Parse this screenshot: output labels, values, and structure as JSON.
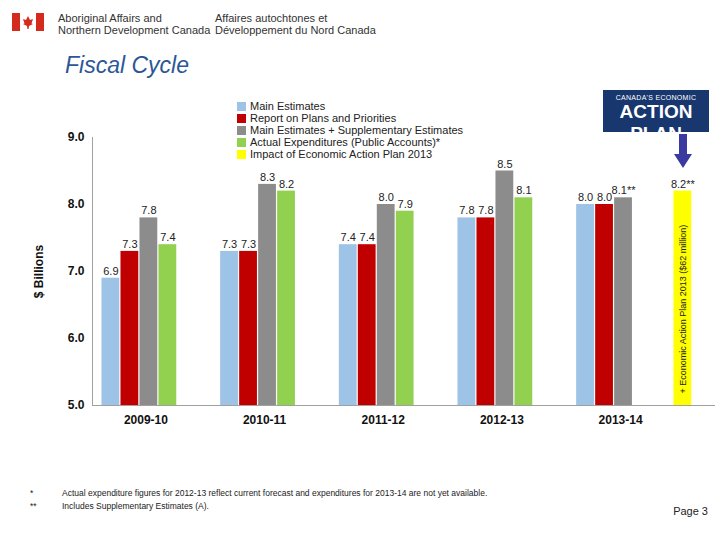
{
  "header": {
    "english": [
      "Aboriginal Affairs and",
      "Northern Development Canada"
    ],
    "french": [
      "Affaires autochtones et",
      "Développement du Nord Canada"
    ]
  },
  "title": "Fiscal Cycle",
  "logo": [
    "CANADA'S ECONOMIC",
    "ACTION PLAN"
  ],
  "chart_data": {
    "type": "bar",
    "y_label": "$ Billions",
    "categories": [
      "2009-10",
      "2010-11",
      "2011-12",
      "2012-13",
      "2013-14"
    ],
    "series": [
      {
        "name": "Main Estimates",
        "color": "#9dc3e6",
        "values": [
          6.9,
          7.3,
          7.4,
          7.8,
          8.0
        ],
        "value_labels": [
          "6.9",
          "7.3",
          "7.4",
          "7.8",
          "8.0"
        ]
      },
      {
        "name": "Report on Plans and Priorities",
        "color": "#c00000",
        "values": [
          7.3,
          7.3,
          7.4,
          7.8,
          8.0
        ],
        "value_labels": [
          "7.3",
          "7.3",
          "7.4",
          "7.8",
          "8.0"
        ]
      },
      {
        "name": "Main Estimates + Supplementary Estimates",
        "color": "#8c8c8c",
        "values": [
          7.8,
          8.3,
          8.0,
          8.5,
          8.1
        ],
        "value_labels": [
          "7.8",
          "8.3",
          "8.0",
          "8.5",
          "8.1**"
        ]
      },
      {
        "name": "Actual Expenditures (Public Accounts)*",
        "color": "#92d050",
        "values": [
          7.4,
          8.2,
          7.9,
          8.1,
          null
        ],
        "value_labels": [
          "7.4",
          "8.2",
          "7.9",
          "8.1",
          null
        ]
      },
      {
        "name": "Impact of Economic Action Plan 2013",
        "color": "#ffff00",
        "values": [
          null,
          null,
          null,
          null,
          8.2
        ],
        "value_labels": [
          null,
          null,
          null,
          null,
          "8.2**"
        ]
      }
    ],
    "ylim": [
      5,
      9
    ],
    "yticks": [
      {
        "value": 5,
        "label": "5.0"
      },
      {
        "value": 6,
        "label": "6.0"
      },
      {
        "value": 7,
        "label": "7.0"
      },
      {
        "value": 8,
        "label": "8.0"
      },
      {
        "value": 9,
        "label": "9.0"
      }
    ],
    "data_labels": true,
    "legend": "top-left",
    "grid": false,
    "annotations": [
      {
        "text": "+ Economic Action Plan 2013 ($62 million)",
        "category": "2013-14",
        "series": "Impact of Economic Action Plan 2013"
      }
    ]
  },
  "footnotes": [
    {
      "mark": "*",
      "text": "Actual expenditure figures for 2012-13 reflect current forecast and expenditures for 2013-14 are not yet available."
    },
    {
      "mark": "**",
      "text": "Includes Supplementary Estimates (A)."
    }
  ],
  "page": "Page 3"
}
